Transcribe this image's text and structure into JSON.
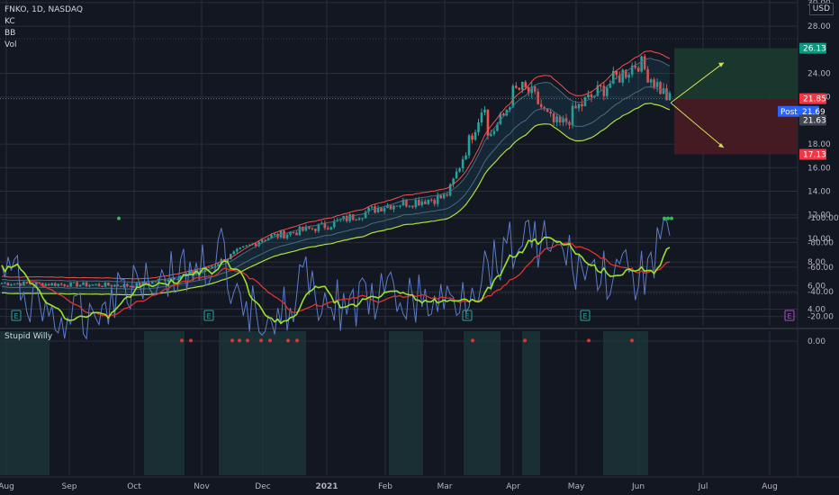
{
  "header": {
    "symbol_title": "FNKO, 1D, NASDAQ",
    "indicators": [
      "KC",
      "BB",
      "Vol"
    ],
    "currency": "USD"
  },
  "oscillator": {
    "title": "Stupid Willy"
  },
  "colors": {
    "background": "#131722",
    "grid": "#2a2e39",
    "candle_up": "#26a69a",
    "candle_down": "#ef5350",
    "kc_line": "#ef5350",
    "bb_line": "#b2e03c",
    "green_zone": "#1b3b2e",
    "red_zone": "#4a1c24",
    "post_tag": "#2962ff",
    "osc_blue": "#5b7cc9",
    "osc_red": "#e0322f",
    "osc_green": "#9be22d"
  },
  "chart_data": [
    {
      "type": "candlestick",
      "title": "FNKO, 1D, NASDAQ",
      "x_ticks": [
        "Aug",
        "Sep",
        "Oct",
        "Nov",
        "Dec",
        "2021",
        "Feb",
        "Mar",
        "Apr",
        "May",
        "Jun",
        "Jul",
        "Aug"
      ],
      "y_ticks": [
        4.0,
        6.0,
        8.0,
        10.0,
        12.0,
        14.0,
        16.0,
        18.0,
        22.0,
        24.0,
        28.0,
        30.0
      ],
      "price_tags": [
        {
          "label": "26.13",
          "value": 26.13,
          "color": "#089981"
        },
        {
          "label": "21.85",
          "value": 21.85,
          "color": "#f23645"
        },
        {
          "label": "21.69",
          "value": 21.69,
          "color": "#2962ff",
          "prefix": "Post"
        },
        {
          "label": "21.63",
          "value": 21.63,
          "color": "#434651"
        },
        {
          "label": "17.13",
          "value": 17.13,
          "color": "#f23645"
        }
      ],
      "close_series_by_month": [
        {
          "month": "Aug",
          "close": 6.2
        },
        {
          "month": "Sep",
          "close": 6.1
        },
        {
          "month": "Oct",
          "close": 6.0
        },
        {
          "month": "Nov",
          "close": 7.2
        },
        {
          "month": "Dec",
          "close": 10.0
        },
        {
          "month": "2021",
          "close": 11.1
        },
        {
          "month": "Feb",
          "close": 12.8
        },
        {
          "month": "Mar",
          "close": 13.5
        },
        {
          "month": "Apr",
          "close": 21.5
        },
        {
          "month": "May",
          "close": 21.0
        },
        {
          "month": "Jun",
          "close": 25.0
        },
        {
          "month": "Jun-end",
          "close": 21.6
        }
      ],
      "earnings_marks": [
        "E",
        "E",
        "E",
        "E",
        "E"
      ],
      "position_tool": {
        "entry": 21.85,
        "target": 26.13,
        "stop": 17.13
      }
    },
    {
      "type": "line",
      "title": "Stupid Willy",
      "y_ticks": [
        0.0,
        -20.0,
        -40.0,
        -60.0,
        -80.0,
        -100.0
      ],
      "ylim": [
        -100,
        0
      ]
    }
  ]
}
